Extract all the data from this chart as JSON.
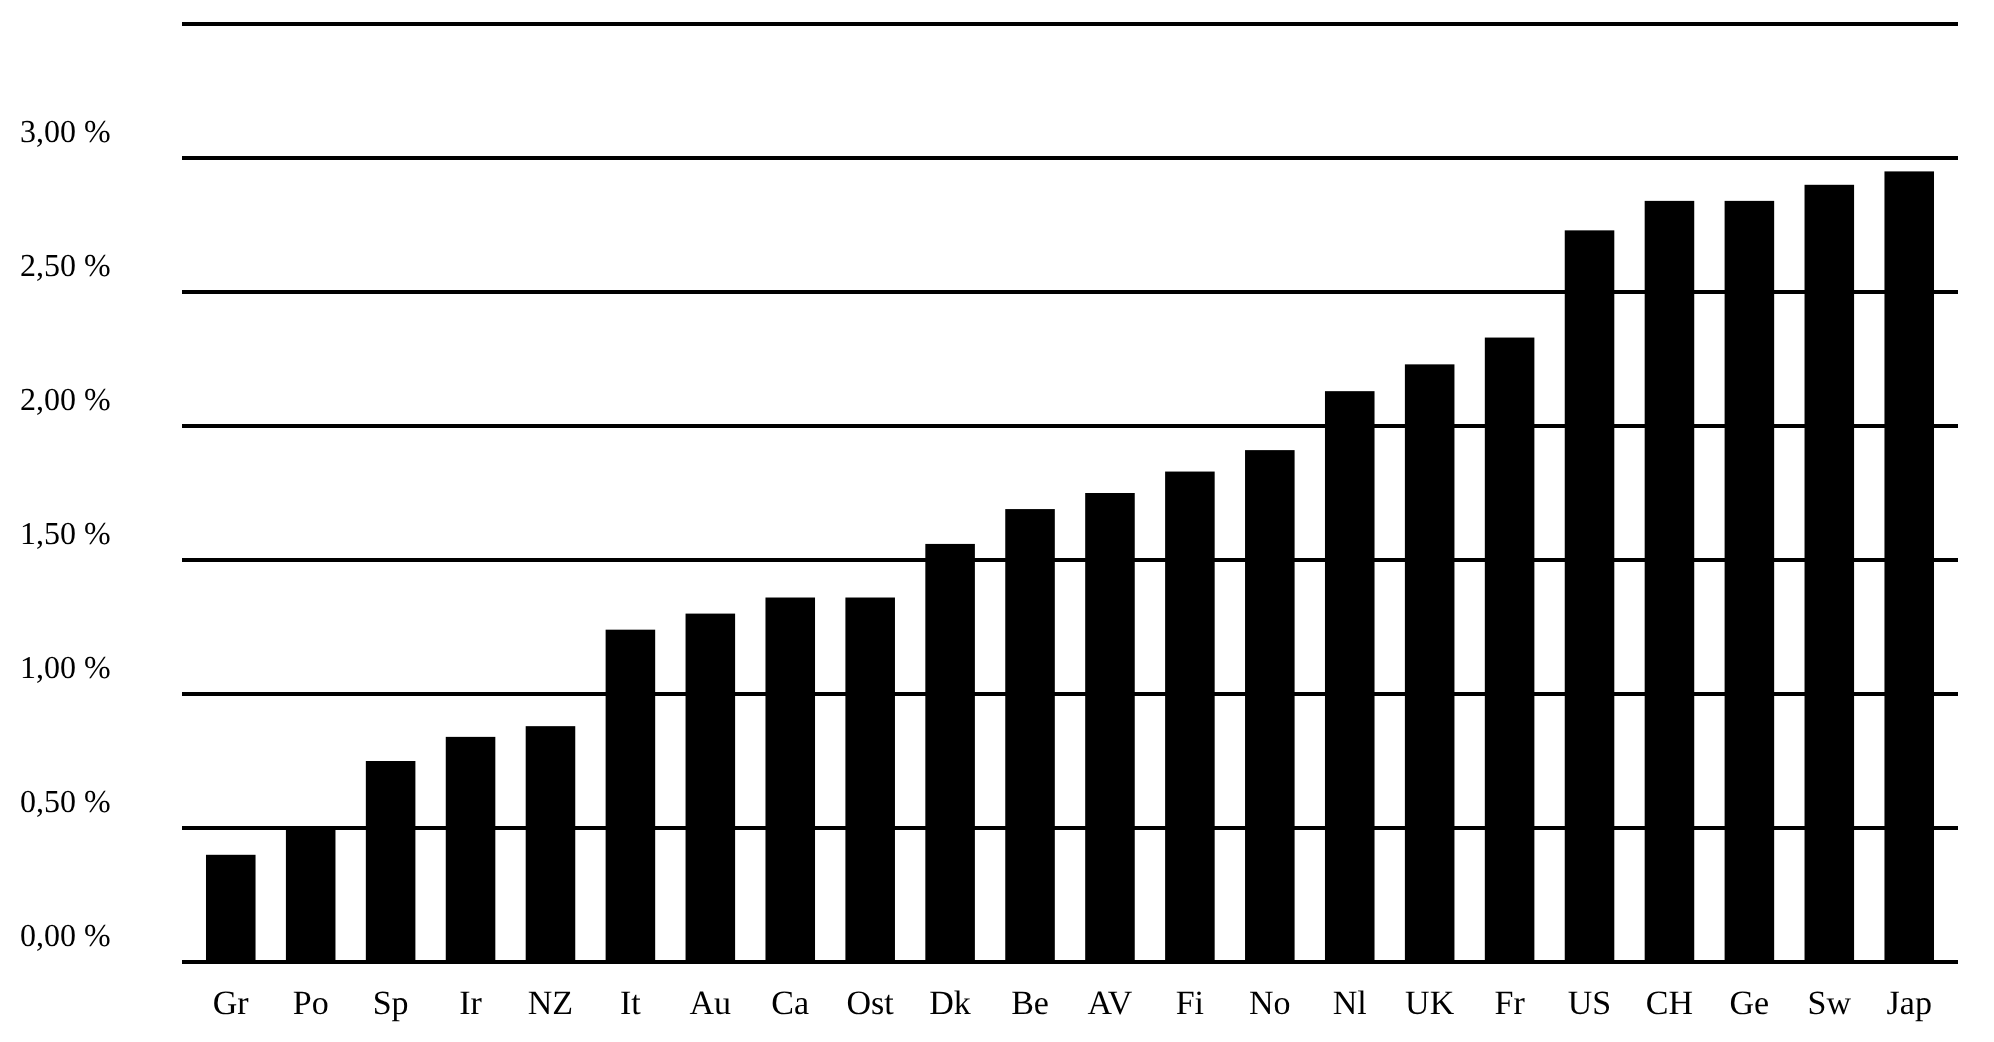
{
  "chart_data": {
    "type": "bar",
    "categories": [
      "Gr",
      "Po",
      "Sp",
      "Ir",
      "NZ",
      "It",
      "Au",
      "Ca",
      "Ost",
      "Dk",
      "Be",
      "AV",
      "Fi",
      "No",
      "Nl",
      "UK",
      "Fr",
      "US",
      "CH",
      "Ge",
      "Sw",
      "Jap"
    ],
    "values": [
      0.4,
      0.5,
      0.75,
      0.84,
      0.88,
      1.24,
      1.3,
      1.36,
      1.36,
      1.56,
      1.69,
      1.75,
      1.83,
      1.91,
      2.13,
      2.23,
      2.33,
      2.73,
      2.84,
      2.84,
      2.9,
      2.95
    ],
    "color": "#000000",
    "ylim": [
      0,
      3.5
    ],
    "yticks": [
      {
        "value": 0,
        "label": "0,00 %"
      },
      {
        "value": 0.5,
        "label": "0,50 %"
      },
      {
        "value": 1,
        "label": "1,00 %"
      },
      {
        "value": 1.5,
        "label": "1,50 %"
      },
      {
        "value": 2,
        "label": "2,00 %"
      },
      {
        "value": 2.5,
        "label": "2,50 %"
      },
      {
        "value": 3,
        "label": "3,00 %"
      },
      {
        "value": 3.5,
        "label": null
      }
    ],
    "grid": "y"
  }
}
